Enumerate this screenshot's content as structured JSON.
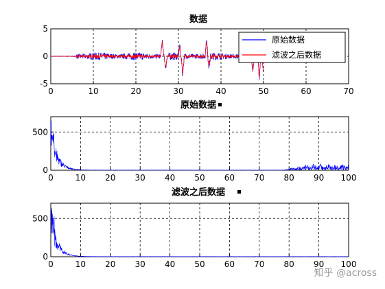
{
  "chart_data": [
    {
      "type": "line",
      "title": "数据",
      "xlim": [
        0,
        70
      ],
      "ylim": [
        -5,
        5
      ],
      "xticks": [
        0,
        10,
        20,
        30,
        40,
        50,
        60,
        70
      ],
      "yticks": [
        -5,
        0,
        5
      ],
      "grid": true,
      "legend_position": "top-right",
      "series": [
        {
          "name": "原始数据",
          "color": "#0000ff"
        },
        {
          "name": "滤波之后数据",
          "color": "#ff0000"
        }
      ],
      "x_range_plotted": [
        0,
        50
      ],
      "events": [
        {
          "x": 26.2,
          "y": 3.0
        },
        {
          "x": 27.0,
          "y": -2.2
        },
        {
          "x": 30.3,
          "y": 2.0
        },
        {
          "x": 31.0,
          "y": -3.5
        },
        {
          "x": 36.6,
          "y": 3.0
        },
        {
          "x": 37.2,
          "y": -1.8
        },
        {
          "x": 47.5,
          "y": -3.0
        },
        {
          "x": 49.0,
          "y": -4.2
        },
        {
          "x": 50.0,
          "y": -3.2
        }
      ]
    },
    {
      "type": "line",
      "title": "原始数据",
      "xlim": [
        0,
        100
      ],
      "ylim": [
        0,
        700
      ],
      "xticks": [
        0,
        10,
        20,
        30,
        40,
        50,
        60,
        70,
        80,
        90,
        100
      ],
      "yticks": [
        0,
        500
      ],
      "grid": true,
      "series": [
        {
          "color": "#0000ff"
        }
      ],
      "peak": {
        "x": 1.0,
        "y": 650
      },
      "high_freq_band": {
        "x_start": 78,
        "x_end": 100,
        "level": 80
      }
    },
    {
      "type": "line",
      "title": "滤波之后数据",
      "xlim": [
        0,
        100
      ],
      "ylim": [
        0,
        700
      ],
      "xticks": [
        0,
        10,
        20,
        30,
        40,
        50,
        60,
        70,
        80,
        90,
        100
      ],
      "yticks": [
        0,
        500
      ],
      "grid": true,
      "series": [
        {
          "color": "#0000ff"
        }
      ],
      "peak": {
        "x": 1.0,
        "y": 650
      }
    }
  ],
  "watermark": "知乎 @across"
}
